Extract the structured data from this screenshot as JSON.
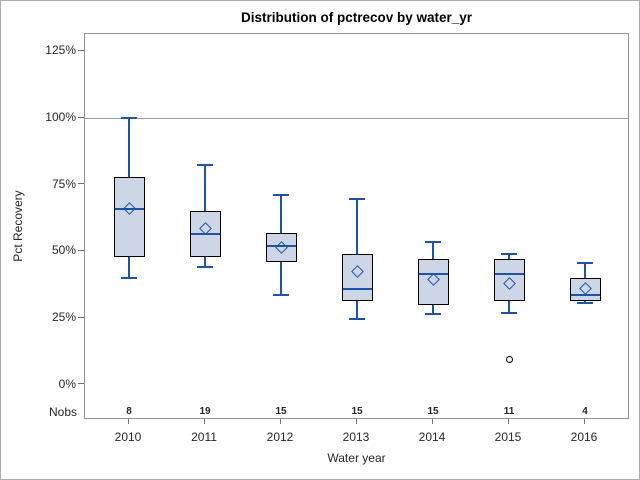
{
  "chart": {
    "title": "Distribution of pctrecov by water_yr",
    "xlabel": "Water year",
    "ylabel": "Pct Recovery",
    "nobs_label": "Nobs",
    "colors": {
      "box_fill": "#cdd6e6",
      "box_border": "#000000",
      "whisker_line": "#2053a3",
      "median_line": "#2053a3",
      "mean_marker": "#2053a3",
      "outlier": "#000000",
      "refline": "#9da0a3",
      "plot_border": "#949494",
      "outer_border": "#ababab",
      "text": "#262626",
      "background": "#ffffff"
    }
  },
  "chart_data": {
    "type": "boxplot",
    "title": "Distribution of pctrecov by water_yr",
    "xlabel": "Water year",
    "ylabel": "Pct Recovery",
    "categories": [
      "2010",
      "2011",
      "2012",
      "2013",
      "2014",
      "2015",
      "2016"
    ],
    "nobs": [
      8,
      19,
      15,
      15,
      15,
      11,
      4
    ],
    "yticks": [
      0,
      25,
      50,
      75,
      100,
      125
    ],
    "ytick_suffix": "%",
    "refline": 100,
    "legend": "none",
    "grid": "off",
    "series": [
      {
        "category": "2010",
        "min": 40,
        "q1": 48,
        "median": 66,
        "q3": 78,
        "max": 100,
        "mean": 66,
        "outliers": []
      },
      {
        "category": "2011",
        "min": 44,
        "q1": 48,
        "median": 56.5,
        "q3": 65,
        "max": 82.5,
        "mean": 58.5,
        "outliers": []
      },
      {
        "category": "2012",
        "min": 33.5,
        "q1": 46,
        "median": 52,
        "q3": 57,
        "max": 71,
        "mean": 51.5,
        "outliers": []
      },
      {
        "category": "2013",
        "min": 24.5,
        "q1": 31.5,
        "median": 36,
        "q3": 49,
        "max": 69.5,
        "mean": 42.5,
        "outliers": []
      },
      {
        "category": "2014",
        "min": 26.5,
        "q1": 30,
        "median": 41.5,
        "q3": 47,
        "max": 53.5,
        "mean": 39.5,
        "outliers": []
      },
      {
        "category": "2015",
        "min": 27,
        "q1": 31.5,
        "median": 41.5,
        "q3": 47,
        "max": 49,
        "mean": 38,
        "outliers": [
          9.5
        ]
      },
      {
        "category": "2016",
        "min": 30.5,
        "q1": 31.5,
        "median": 33.5,
        "q3": 40,
        "max": 45.5,
        "mean": 36,
        "outliers": []
      }
    ]
  }
}
